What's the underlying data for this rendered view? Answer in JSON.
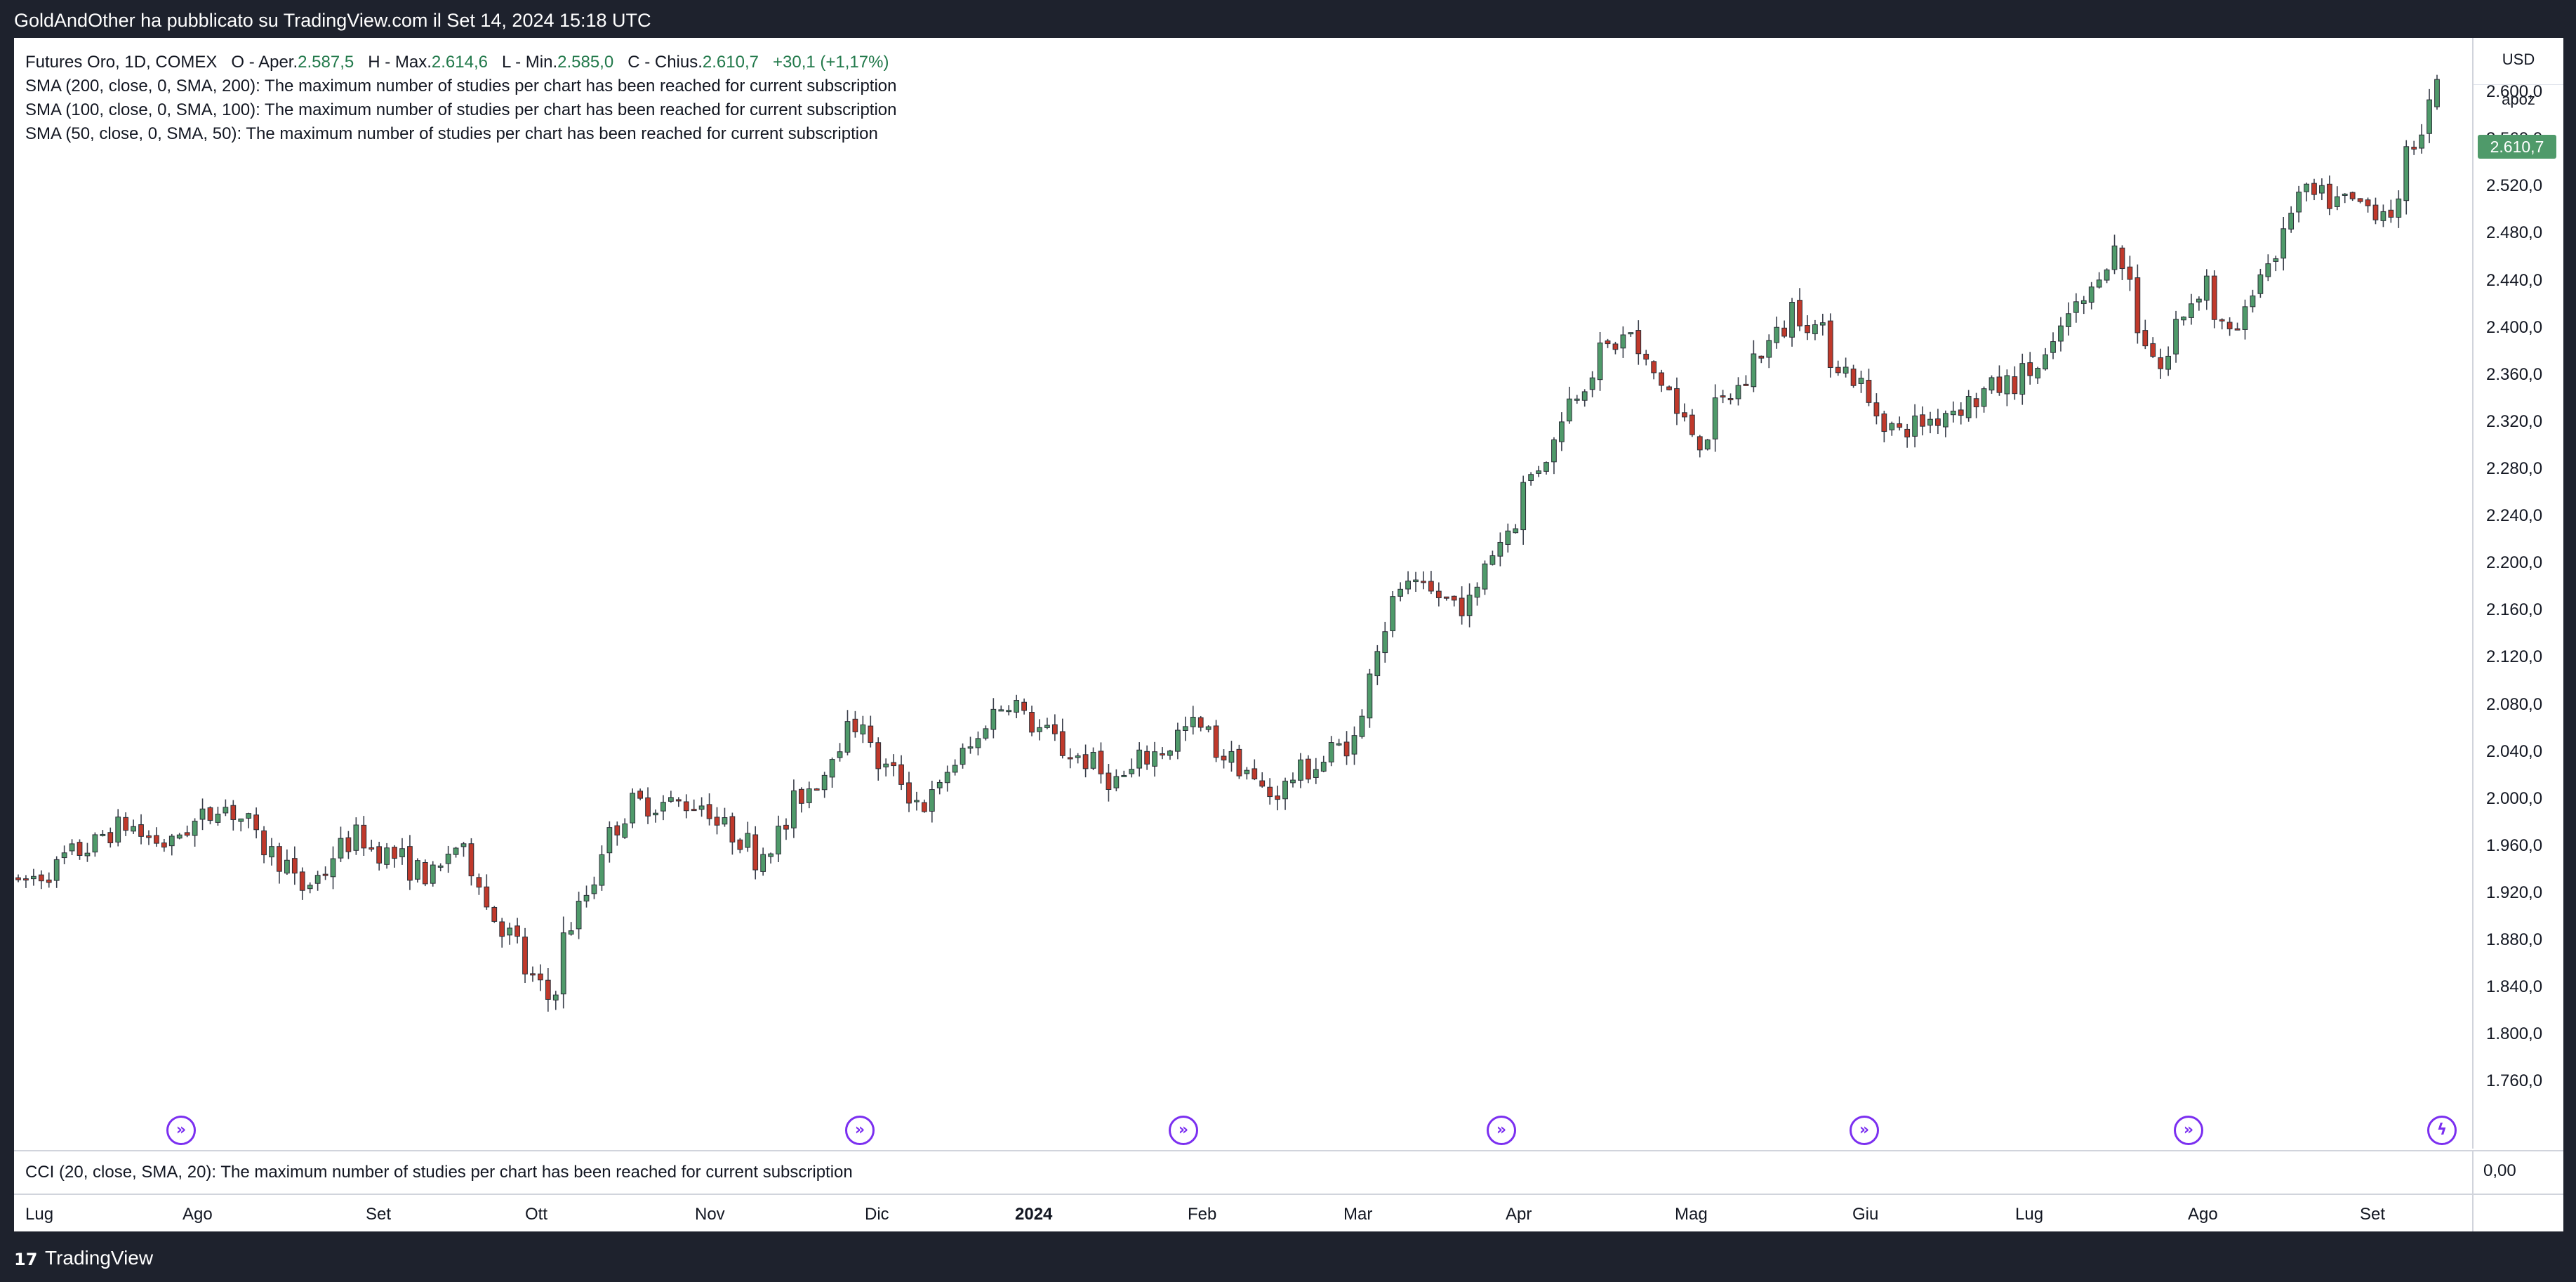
{
  "header": {
    "publisher_text": "GoldAndOther ha pubblicato su TradingView.com il Set 14, 2024 15:18 UTC"
  },
  "legend": {
    "symbol": "Futures Oro, 1D, COMEX",
    "open_label": "O - Aper.",
    "open_value": "2.587,5",
    "high_label": "H - Max.",
    "high_value": "2.614,6",
    "low_label": "L - Min.",
    "low_value": "2.585,0",
    "close_label": "C - Chius.",
    "close_value": "2.610,7",
    "change": "+30,1 (+1,17%)",
    "studies": [
      "SMA (200, close, 0, SMA, 200): The maximum number of studies per chart has been reached for current subscription",
      "SMA (100, close, 0, SMA, 100): The maximum number of studies per chart has been reached for current subscription",
      "SMA (50, close, 0, SMA, 50): The maximum number of studies per chart has been reached for current subscription"
    ]
  },
  "price_scale": {
    "currency": "USD",
    "unit": "apoz",
    "last_price_label": "2.610,7",
    "ticks": [
      "2.600,0",
      "2.560,0",
      "2.520,0",
      "2.480,0",
      "2.440,0",
      "2.400,0",
      "2.360,0",
      "2.320,0",
      "2.280,0",
      "2.240,0",
      "2.200,0",
      "2.160,0",
      "2.120,0",
      "2.080,0",
      "2.040,0",
      "2.000,0",
      "1.960,0",
      "1.920,0",
      "1.880,0",
      "1.840,0",
      "1.800,0",
      "1.760,0"
    ]
  },
  "cci_pane": {
    "label": "CCI (20, close, SMA, 20): The maximum number of studies per chart has been reached for current subscription",
    "scale_value": "0,00"
  },
  "time_axis": {
    "months": [
      "Lug",
      "Ago",
      "Set",
      "Ott",
      "Nov",
      "Dic",
      "2024",
      "Feb",
      "Mar",
      "Apr",
      "Mag",
      "Giu",
      "Lug",
      "Ago",
      "Set"
    ]
  },
  "event_icons": [
    "dividend-arrow",
    "dividend-arrow",
    "dividend-arrow",
    "dividend-arrow",
    "dividend-arrow",
    "dividend-arrow",
    "earnings-bolt"
  ],
  "colors": {
    "up": "#4f9a6a",
    "down": "#c0392b",
    "event": "#7b2ff0",
    "background": "#1e222d"
  },
  "footer": {
    "brand": "TradingView"
  },
  "chart_data": {
    "type": "candlestick",
    "ylim": [
      1740,
      2640
    ],
    "x_range": [
      "2023-06-30",
      "2024-09-13"
    ],
    "start": 1935,
    "waypoints": [
      [
        "2023-06-30",
        1922
      ],
      [
        "2023-07-20",
        1978
      ],
      [
        "2023-07-28",
        1960
      ],
      [
        "2023-08-07",
        1998
      ],
      [
        "2023-08-22",
        1924
      ],
      [
        "2023-08-31",
        1968
      ],
      [
        "2023-09-14",
        1934
      ],
      [
        "2023-09-19",
        1960
      ],
      [
        "2023-09-26",
        1900
      ],
      [
        "2023-10-05",
        1830
      ],
      [
        "2023-10-13",
        1932
      ],
      [
        "2023-10-20",
        1996
      ],
      [
        "2023-11-02",
        1996
      ],
      [
        "2023-11-13",
        1950
      ],
      [
        "2023-12-01",
        2070
      ],
      [
        "2023-12-05",
        2030
      ],
      [
        "2023-12-13",
        1995
      ],
      [
        "2023-12-28",
        2085
      ],
      [
        "2024-01-05",
        2050
      ],
      [
        "2024-01-17",
        2015
      ],
      [
        "2024-01-31",
        2062
      ],
      [
        "2024-02-14",
        2004
      ],
      [
        "2024-02-29",
        2050
      ],
      [
        "2024-03-08",
        2180
      ],
      [
        "2024-03-21",
        2165
      ],
      [
        "2024-04-12",
        2365
      ],
      [
        "2024-04-19",
        2395
      ],
      [
        "2024-05-02",
        2305
      ],
      [
        "2024-05-20",
        2418
      ],
      [
        "2024-06-07",
        2310
      ],
      [
        "2024-06-17",
        2330
      ],
      [
        "2024-07-03",
        2365
      ],
      [
        "2024-07-17",
        2465
      ],
      [
        "2024-07-25",
        2365
      ],
      [
        "2024-08-02",
        2442
      ],
      [
        "2024-08-07",
        2390
      ],
      [
        "2024-08-20",
        2512
      ],
      [
        "2024-09-06",
        2500
      ],
      [
        "2024-09-12",
        2587
      ],
      [
        "2024-09-13",
        2610.7
      ]
    ],
    "last_bar": {
      "date": "2024-09-13",
      "open": 2587.5,
      "high": 2614.6,
      "low": 2585.0,
      "close": 2610.7
    }
  }
}
